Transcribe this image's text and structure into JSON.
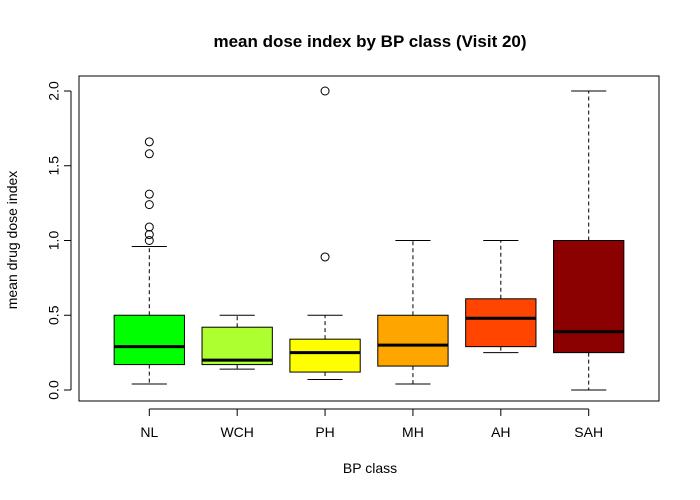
{
  "chart_data": {
    "type": "boxplot",
    "title": "mean dose index by BP class (Visit 20)",
    "xlabel": "BP class",
    "ylabel": "mean drug dose index",
    "ylim": [
      0,
      2
    ],
    "yticks": [
      "0.0",
      "0.5",
      "1.0",
      "1.5",
      "2.0"
    ],
    "categories": [
      "NL",
      "WCH",
      "PH",
      "MH",
      "AH",
      "SAH"
    ],
    "colors": [
      "#00ff00",
      "#adff2f",
      "#ffff00",
      "#ffa500",
      "#ff4500",
      "#8b0000"
    ],
    "boxes": [
      {
        "category": "NL",
        "whisker_low": 0.04,
        "q1": 0.17,
        "median": 0.29,
        "q3": 0.5,
        "whisker_high": 0.96,
        "outliers": [
          1.0,
          1.04,
          1.09,
          1.24,
          1.31,
          1.58,
          1.66
        ]
      },
      {
        "category": "WCH",
        "whisker_low": 0.14,
        "q1": 0.17,
        "median": 0.2,
        "q3": 0.42,
        "whisker_high": 0.5,
        "outliers": []
      },
      {
        "category": "PH",
        "whisker_low": 0.07,
        "q1": 0.12,
        "median": 0.25,
        "q3": 0.34,
        "whisker_high": 0.5,
        "outliers": [
          0.89,
          2.0
        ]
      },
      {
        "category": "MH",
        "whisker_low": 0.04,
        "q1": 0.16,
        "median": 0.3,
        "q3": 0.5,
        "whisker_high": 1.0,
        "outliers": []
      },
      {
        "category": "AH",
        "whisker_low": 0.25,
        "q1": 0.29,
        "median": 0.48,
        "q3": 0.61,
        "whisker_high": 1.0,
        "outliers": []
      },
      {
        "category": "SAH",
        "whisker_low": 0.0,
        "q1": 0.25,
        "median": 0.39,
        "q3": 1.0,
        "whisker_high": 2.0,
        "outliers": []
      }
    ]
  }
}
